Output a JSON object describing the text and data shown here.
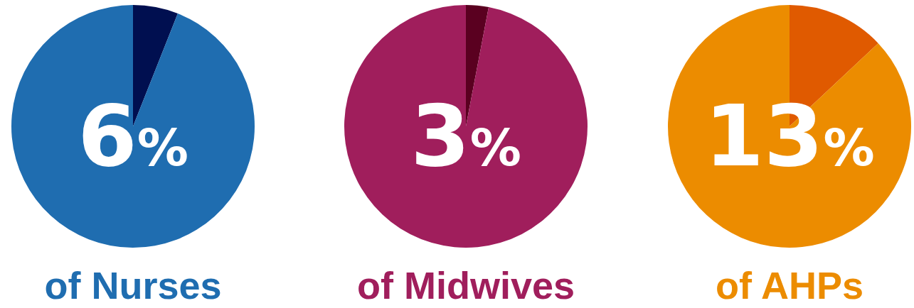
{
  "chart_data": [
    {
      "type": "pie",
      "title": "of Nurses",
      "categories": [
        null,
        null
      ],
      "values": [
        6,
        94
      ],
      "colors": [
        "#000f50",
        "#1f6db0"
      ],
      "annotations": [
        "6%"
      ]
    },
    {
      "type": "pie",
      "title": "of Midwives",
      "categories": [
        null,
        null
      ],
      "values": [
        3,
        97
      ],
      "colors": [
        "#5a0020",
        "#a01e5c"
      ],
      "annotations": [
        "3%"
      ]
    },
    {
      "type": "pie",
      "title": "of AHPs",
      "categories": [
        null,
        null
      ],
      "values": [
        13,
        87
      ],
      "colors": [
        "#e05a00",
        "#ec8c00"
      ],
      "annotations": [
        "13%"
      ]
    }
  ]
}
